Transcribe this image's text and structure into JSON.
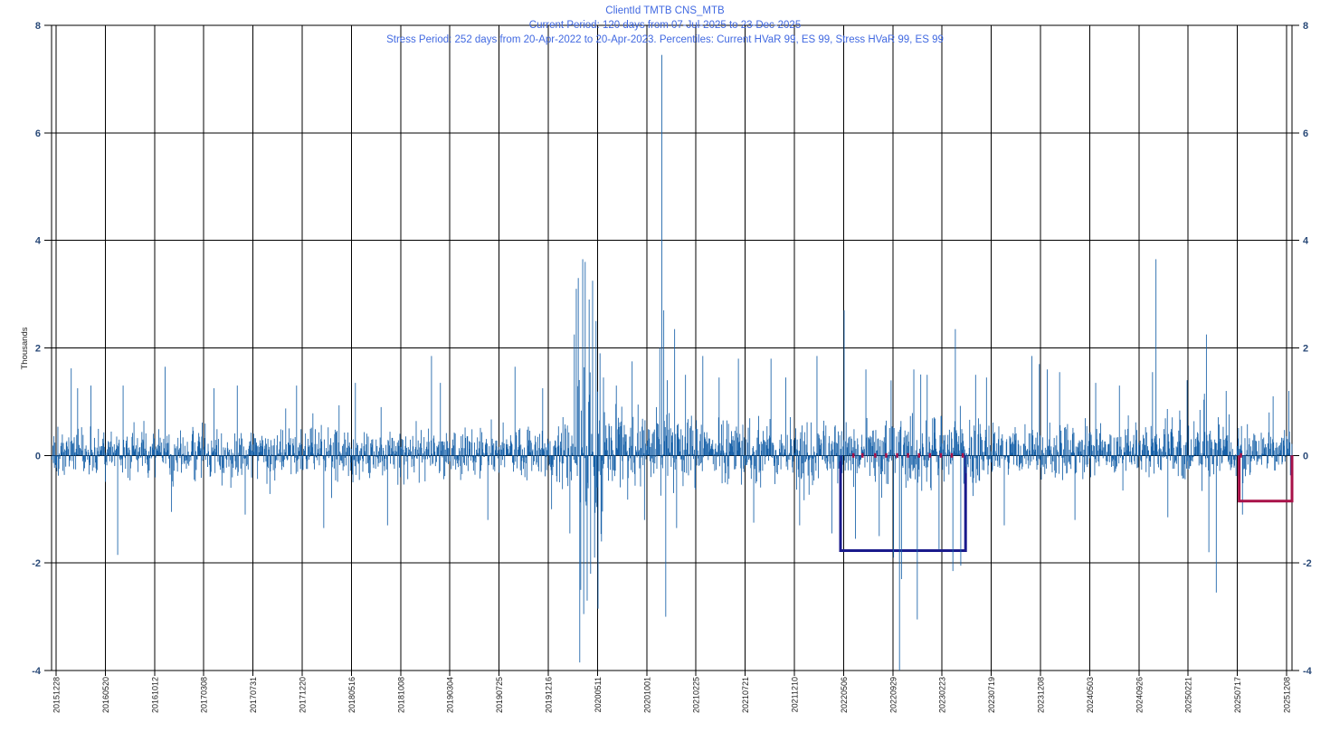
{
  "title": {
    "line1": "ClientId TMTB CNS_MTB",
    "line2": "Current Period: 120 days from 07-Jul-2025 to 23-Dec-2025",
    "line3": "Stress Period: 252 days from 20-Apr-2022 to 20-Apr-2023. Percentiles:  Current HVaR  99,   ES  99,   Stress HVaR  99,   ES  99"
  },
  "chart_data": {
    "type": "bar",
    "title": "ClientId TMTB CNS_MTB",
    "subtitle1": "Current Period: 120 days from 07-Jul-2025 to 23-Dec-2025",
    "subtitle2": "Stress Period: 252 days from 20-Apr-2022 to 20-Apr-2023. Percentiles:  Current HVaR  99,   ES  99,   Stress HVaR  99,   ES  99",
    "xlabel": "",
    "ylabel": "Thousands",
    "ylim": [
      -4,
      8
    ],
    "yticks": [
      8,
      6,
      4,
      2,
      0,
      -2,
      -4
    ],
    "grid": true,
    "legend": "none",
    "bar_color": "#1660A8",
    "grid_color": "#000000",
    "tick_label_color": "#2A4A78",
    "title_color": "#4169E1",
    "xtick_labels": [
      "20151228",
      "20160520",
      "20161012",
      "20170308",
      "20170731",
      "20171220",
      "20180516",
      "20181008",
      "20190304",
      "20190725",
      "20191216",
      "20200511",
      "20201001",
      "20210225",
      "20210721",
      "20211210",
      "20220506",
      "20220929",
      "20230223",
      "20230719",
      "20231208",
      "20240503",
      "20240926",
      "20250221",
      "20250717",
      "20251208"
    ],
    "x_axis": {
      "first_date": "20151228",
      "last_date": "20251208",
      "tick_interval_trading_days": 100
    },
    "n_points": 2510,
    "seed": 1337,
    "noise": {
      "bias": 0.09,
      "outlier_p": 0.035,
      "outlier_mult": 1.9
    },
    "envelope": [
      [
        0.0,
        0.41,
        0.75
      ],
      [
        0.41,
        0.424,
        1.0
      ],
      [
        0.424,
        0.447,
        2.55
      ],
      [
        0.447,
        0.465,
        1.5
      ],
      [
        0.465,
        0.52,
        1.15
      ],
      [
        0.52,
        0.6,
        0.9
      ],
      [
        0.6,
        0.66,
        1.0
      ],
      [
        0.66,
        0.75,
        1.1
      ],
      [
        0.75,
        0.88,
        0.85
      ],
      [
        0.88,
        0.95,
        0.9
      ],
      [
        0.95,
        1.0,
        0.75
      ]
    ],
    "spikes": [
      [
        0.0154,
        1.62
      ],
      [
        0.0206,
        1.25
      ],
      [
        0.0316,
        1.3
      ],
      [
        0.0529,
        -1.85
      ],
      [
        0.0574,
        1.3
      ],
      [
        0.0912,
        1.65
      ],
      [
        0.0963,
        -1.05
      ],
      [
        0.1309,
        1.25
      ],
      [
        0.1493,
        1.3
      ],
      [
        0.156,
        -1.1
      ],
      [
        0.1971,
        1.3
      ],
      [
        0.2191,
        -1.35
      ],
      [
        0.2449,
        1.35
      ],
      [
        0.2706,
        -1.3
      ],
      [
        0.3059,
        1.85
      ],
      [
        0.3132,
        1.35
      ],
      [
        0.3515,
        -1.2
      ],
      [
        0.3735,
        1.65
      ],
      [
        0.3956,
        1.25
      ],
      [
        0.4029,
        -1.0
      ],
      [
        0.4176,
        -1.45
      ],
      [
        0.4213,
        2.25
      ],
      [
        0.4228,
        3.1
      ],
      [
        0.4243,
        3.3
      ],
      [
        0.4257,
        -3.85
      ],
      [
        0.4265,
        -2.5
      ],
      [
        0.4279,
        3.65
      ],
      [
        0.4287,
        -2.95
      ],
      [
        0.4301,
        3.6
      ],
      [
        0.4316,
        -2.7
      ],
      [
        0.4331,
        2.9
      ],
      [
        0.4346,
        -2.2
      ],
      [
        0.436,
        3.25
      ],
      [
        0.4375,
        -1.9
      ],
      [
        0.439,
        2.5
      ],
      [
        0.4404,
        -2.85
      ],
      [
        0.4419,
        1.9
      ],
      [
        0.4434,
        -1.6
      ],
      [
        0.4449,
        1.45
      ],
      [
        0.455,
        1.3
      ],
      [
        0.468,
        1.75
      ],
      [
        0.478,
        -1.2
      ],
      [
        0.4904,
        2.0
      ],
      [
        0.4919,
        7.45
      ],
      [
        0.4934,
        2.7
      ],
      [
        0.4949,
        -3.0
      ],
      [
        0.4963,
        1.4
      ],
      [
        0.5022,
        2.35
      ],
      [
        0.5037,
        -1.35
      ],
      [
        0.511,
        1.5
      ],
      [
        0.525,
        1.85
      ],
      [
        0.538,
        1.45
      ],
      [
        0.5537,
        1.8
      ],
      [
        0.566,
        -1.25
      ],
      [
        0.5801,
        1.8
      ],
      [
        0.592,
        1.45
      ],
      [
        0.603,
        -1.3
      ],
      [
        0.6169,
        1.85
      ],
      [
        0.629,
        -1.45
      ],
      [
        0.6389,
        2.7
      ],
      [
        0.648,
        -1.55
      ],
      [
        0.6566,
        1.6
      ],
      [
        0.667,
        -1.5
      ],
      [
        0.6786,
        -1.9
      ],
      [
        0.6837,
        -4.35
      ],
      [
        0.6852,
        -2.3
      ],
      [
        0.6951,
        1.6
      ],
      [
        0.6978,
        -3.05
      ],
      [
        0.706,
        1.5
      ],
      [
        0.7155,
        -1.75
      ],
      [
        0.7265,
        -2.15
      ],
      [
        0.7287,
        2.35
      ],
      [
        0.7331,
        -2.05
      ],
      [
        0.745,
        1.5
      ],
      [
        0.7537,
        1.45
      ],
      [
        0.768,
        -1.3
      ],
      [
        0.7904,
        1.85
      ],
      [
        0.7963,
        1.7
      ],
      [
        0.8029,
        1.6
      ],
      [
        0.8125,
        1.55
      ],
      [
        0.825,
        -1.2
      ],
      [
        0.8419,
        1.35
      ],
      [
        0.861,
        1.3
      ],
      [
        0.8875,
        1.55
      ],
      [
        0.8904,
        3.65
      ],
      [
        0.9,
        -1.15
      ],
      [
        0.9154,
        1.4
      ],
      [
        0.9309,
        2.25
      ],
      [
        0.9331,
        -1.8
      ],
      [
        0.939,
        -2.55
      ],
      [
        0.947,
        1.2
      ],
      [
        0.96,
        -1.1
      ],
      [
        0.985,
        1.1
      ],
      [
        0.9978,
        1.2
      ]
    ],
    "annotations": {
      "stress_bracket": {
        "x_from": 0.636,
        "x_to": 0.7368,
        "level": -1.77,
        "color": "#1A1A8C",
        "meaning": "Stress HVaR 99 over stress period 20-Apr-2022 to 20-Apr-2023"
      },
      "current_bracket": {
        "x_from": 0.9574,
        "x_to": 1.0,
        "level": -0.85,
        "color": "#A81148",
        "meaning": "Current HVaR 99 over current period 07-Jul-2025 to 23-Dec-2025"
      },
      "zero_marks": {
        "color": "#A81148",
        "fractions": [
          0.6463,
          0.6537,
          0.664,
          0.6728,
          0.6816,
          0.6904,
          0.6993,
          0.7081,
          0.7169,
          0.7257,
          0.7346,
          0.9588
        ]
      }
    }
  }
}
